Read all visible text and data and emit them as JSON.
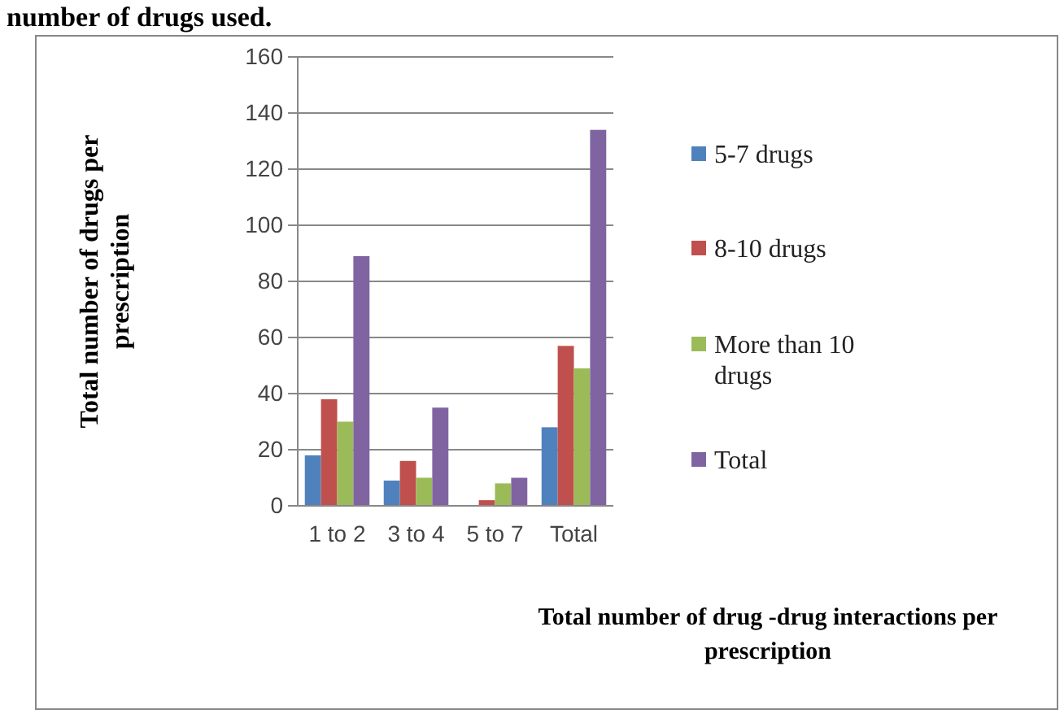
{
  "chart_data": {
    "type": "bar",
    "title": "number of drugs used.",
    "xlabel": "Total number of drug -drug interactions per prescription",
    "ylabel": "Total number of drugs per prescription",
    "categories": [
      "1 to 2",
      "3 to 4",
      "5 to 7",
      "Total"
    ],
    "series": [
      {
        "name": "5-7 drugs",
        "color": "#4f81bd",
        "values": [
          18,
          9,
          0,
          28
        ]
      },
      {
        "name": "8-10 drugs",
        "color": "#c0504d",
        "values": [
          38,
          16,
          2,
          57
        ]
      },
      {
        "name": "More than 10 drugs",
        "color": "#9bbb59",
        "values": [
          30,
          10,
          8,
          49
        ]
      },
      {
        "name": "Total",
        "color": "#8064a2",
        "values": [
          89,
          35,
          10,
          134
        ]
      }
    ],
    "ylim": [
      0,
      160
    ],
    "yticks": [
      0,
      20,
      40,
      60,
      80,
      100,
      120,
      140,
      160
    ],
    "grid": "y",
    "legend": "right"
  }
}
